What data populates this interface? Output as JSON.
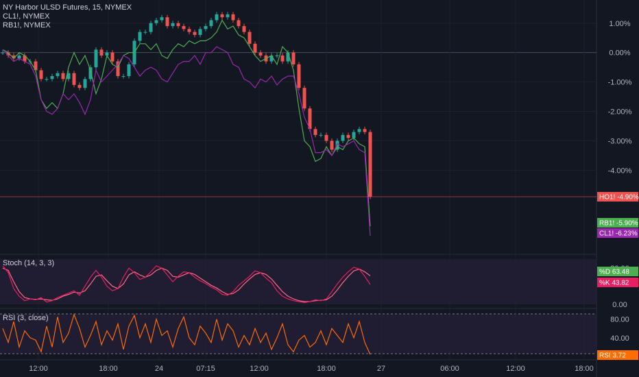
{
  "header": {
    "main_title": "NY Harbor ULSD Futures, 15, NYMEX",
    "compare_1": "CL1!, NYMEX",
    "compare_2": "RB1!, NYMEX"
  },
  "colors": {
    "background": "#131722",
    "up": "#26a69a",
    "down": "#ef5350",
    "rb1": "#4caf50",
    "cl1": "#9c27b0",
    "stoch_k": "#e91e63",
    "stoch_d": "#ff6b8a",
    "rsi": "#ff6d00",
    "band": "#2a1f3d"
  },
  "chart_data": [
    {
      "type": "candlestick",
      "title": "NY Harbor ULSD Futures, 15, NYMEX",
      "y_unit": "%",
      "ylim": [
        -6.6,
        1.6
      ],
      "y_ticks": [
        "1.00%",
        "0.00%",
        "-1.00%",
        "-2.00%",
        "-3.00%",
        "-4.00%"
      ],
      "x_ticks": [
        "12:00",
        "18:00",
        "24",
        "07:15",
        "12:00",
        "18:00",
        "27",
        "06:00",
        "12:00",
        "18:00"
      ],
      "series": [
        {
          "name": "HO1!",
          "last_label": "HO1!",
          "last_value": "-4.90%"
        },
        {
          "name": "RB1!, NYMEX",
          "last_label": "RB1!",
          "last_value": "-5.90%"
        },
        {
          "name": "CL1!, NYMEX",
          "last_label": "CL1!",
          "last_value": "-6.23%"
        }
      ],
      "ho1_close": [
        0.0,
        -0.1,
        -0.2,
        -0.1,
        -0.3,
        -0.3,
        -0.6,
        -0.9,
        -0.9,
        -0.8,
        -0.7,
        -0.9,
        -0.7,
        -1.1,
        -1.2,
        -0.9,
        -0.5,
        0.1,
        -0.1,
        0.0,
        -0.3,
        -0.8,
        -0.8,
        -0.4,
        0.4,
        0.7,
        0.7,
        1.0,
        1.1,
        1.2,
        0.9,
        1.0,
        0.9,
        0.8,
        0.7,
        0.6,
        0.8,
        0.9,
        1.1,
        1.3,
        1.2,
        1.3,
        1.1,
        0.9,
        0.7,
        0.3,
        0.0,
        -0.1,
        -0.3,
        -0.1,
        -0.1,
        -0.3,
        0.0,
        -0.4,
        -1.2,
        -1.9,
        -2.6,
        -2.8,
        -2.8,
        -3.0,
        -3.3,
        -3.0,
        -2.8,
        -2.9,
        -2.7,
        -2.6,
        -2.7,
        -4.9
      ],
      "rb1": [
        0.1,
        0.0,
        -0.2,
        0.0,
        -0.1,
        -0.3,
        -0.6,
        -1.6,
        -1.9,
        -1.7,
        -1.9,
        -1.4,
        -0.5,
        0.0,
        -0.4,
        -0.1,
        -0.6,
        -1.4,
        -0.9,
        -0.1,
        -0.4,
        -0.5,
        -0.1,
        0.0,
        0.0,
        0.3,
        0.3,
        0.1,
        0.3,
        -0.1,
        -0.2,
        0.1,
        0.3,
        0.2,
        0.4,
        0.3,
        0.4,
        0.4,
        0.5,
        0.7,
        1.1,
        0.8,
        0.9,
        0.6,
        0.5,
        0.2,
        -0.1,
        -0.3,
        -0.2,
        -0.1,
        -0.4,
        0.2,
        0.0,
        -0.6,
        -1.9,
        -3.0,
        -3.2,
        -3.7,
        -3.6,
        -3.2,
        -3.5,
        -3.2,
        -3.3,
        -3.0,
        -2.9,
        -3.1,
        -3.2,
        -5.9
      ],
      "cl1": [
        0.1,
        -0.1,
        -0.3,
        -0.2,
        -0.3,
        -0.4,
        -0.8,
        -1.6,
        -2.0,
        -2.1,
        -1.9,
        -1.4,
        -1.6,
        -1.4,
        -1.7,
        -2.1,
        -1.6,
        -0.6,
        -1.0,
        -0.8,
        -0.6,
        -0.4,
        -0.1,
        -0.2,
        -0.5,
        -0.8,
        -0.6,
        -0.5,
        -0.6,
        -0.9,
        -1.0,
        -0.7,
        -0.4,
        -0.3,
        -0.3,
        -0.1,
        -0.4,
        0.0,
        0.0,
        0.2,
        0.1,
        0.0,
        -0.4,
        -0.5,
        -0.9,
        -1.0,
        -1.2,
        -0.9,
        -1.0,
        -0.8,
        -1.1,
        -0.9,
        -0.8,
        -0.8,
        -1.4,
        -2.2,
        -2.6,
        -3.4,
        -3.4,
        -3.3,
        -3.5,
        -3.1,
        -3.2,
        -3.1,
        -3.0,
        -3.3,
        -3.4,
        -6.23
      ]
    },
    {
      "type": "line",
      "title": "Stoch (14, 3, 3)",
      "ylim": [
        0,
        100
      ],
      "y_ticks": [
        "80.00",
        "0.00"
      ],
      "series": [
        {
          "name": "%K",
          "last_label": "%K",
          "last_value": "43.82",
          "values": [
            85,
            70,
            35,
            18,
            8,
            12,
            10,
            15,
            5,
            8,
            15,
            20,
            25,
            30,
            20,
            40,
            60,
            75,
            60,
            40,
            30,
            35,
            60,
            80,
            70,
            55,
            60,
            72,
            85,
            80,
            65,
            50,
            62,
            72,
            70,
            60,
            52,
            46,
            38,
            32,
            22,
            20,
            28,
            42,
            52,
            62,
            74,
            70,
            58,
            48,
            30,
            18,
            12,
            8,
            6,
            4,
            6,
            10,
            8,
            12,
            28,
            45,
            60,
            72,
            82,
            78,
            62,
            44
          ]
        },
        {
          "name": "%D",
          "last_label": "%D",
          "last_value": "63.48",
          "values": [
            80,
            75,
            50,
            28,
            15,
            12,
            11,
            12,
            10,
            9,
            12,
            18,
            22,
            27,
            25,
            30,
            45,
            62,
            65,
            52,
            40,
            35,
            45,
            65,
            72,
            65,
            60,
            65,
            75,
            80,
            75,
            62,
            60,
            65,
            70,
            66,
            58,
            50,
            42,
            36,
            28,
            22,
            24,
            32,
            45,
            56,
            66,
            70,
            66,
            56,
            42,
            28,
            18,
            12,
            8,
            6,
            6,
            8,
            9,
            10,
            18,
            32,
            48,
            62,
            74,
            78,
            72,
            63
          ]
        }
      ]
    },
    {
      "type": "line",
      "title": "RSI (3, close)",
      "ylim": [
        0,
        100
      ],
      "y_ticks": [
        "80.00",
        "40.00"
      ],
      "bands": [
        20,
        80
      ],
      "series": [
        {
          "name": "RSI",
          "last_label": "RSI",
          "last_value": "3.72",
          "values": [
            60,
            30,
            75,
            20,
            55,
            40,
            35,
            10,
            65,
            20,
            85,
            30,
            50,
            90,
            60,
            20,
            45,
            75,
            25,
            55,
            35,
            70,
            15,
            65,
            88,
            40,
            70,
            30,
            80,
            45,
            55,
            20,
            60,
            85,
            40,
            25,
            65,
            50,
            30,
            80,
            35,
            70,
            55,
            20,
            45,
            25,
            60,
            30,
            50,
            15,
            40,
            70,
            25,
            10,
            35,
            45,
            20,
            30,
            55,
            25,
            60,
            45,
            30,
            70,
            40,
            75,
            30,
            4
          ]
        }
      ]
    }
  ]
}
